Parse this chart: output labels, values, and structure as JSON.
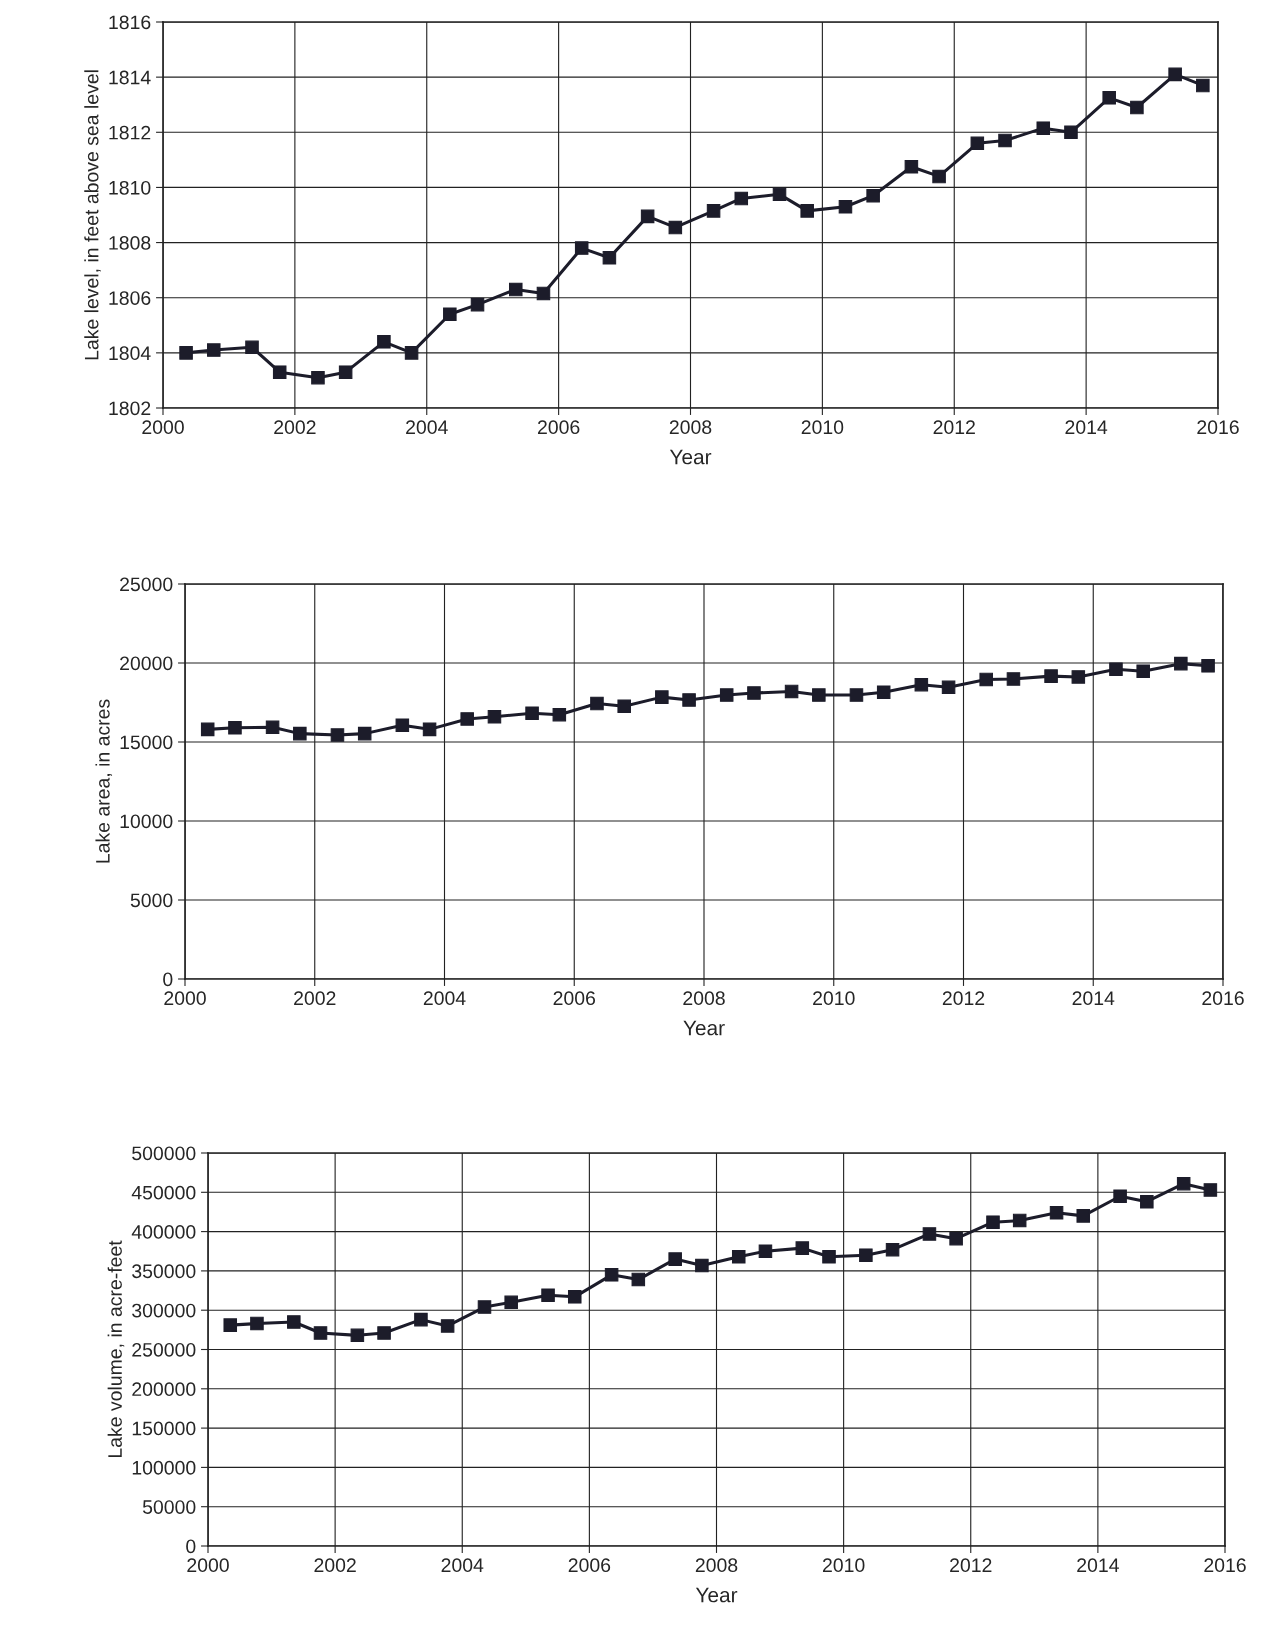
{
  "chart_data": [
    {
      "type": "line",
      "xlabel": "Year",
      "ylabel": "Lake level, in feet above sea level",
      "x": [
        2000.35,
        2000.77,
        2001.35,
        2001.77,
        2002.35,
        2002.77,
        2003.35,
        2003.77,
        2004.35,
        2004.77,
        2005.35,
        2005.77,
        2006.35,
        2006.77,
        2007.35,
        2007.77,
        2008.35,
        2008.77,
        2009.35,
        2009.77,
        2010.35,
        2010.77,
        2011.35,
        2011.77,
        2012.35,
        2012.77,
        2013.35,
        2013.77,
        2014.35,
        2014.77,
        2015.35,
        2015.77
      ],
      "series": [
        {
          "color": "#1c1c2a",
          "values": [
            1804.0,
            1804.1,
            1804.2,
            1803.3,
            1803.1,
            1803.3,
            1804.4,
            1804.0,
            1805.4,
            1805.75,
            1806.3,
            1806.15,
            1807.8,
            1807.45,
            1808.95,
            1808.55,
            1809.15,
            1809.6,
            1809.75,
            1809.15,
            1809.3,
            1809.7,
            1810.75,
            1810.4,
            1811.6,
            1811.7,
            1812.15,
            1812.0,
            1813.25,
            1812.9,
            1814.1,
            1813.7
          ]
        }
      ],
      "xlim": [
        2000,
        2016
      ],
      "xticks": [
        2000,
        2002,
        2004,
        2006,
        2008,
        2010,
        2012,
        2014,
        2016
      ],
      "ylim": [
        1802,
        1816
      ],
      "yticks": [
        1802,
        1804,
        1806,
        1808,
        1810,
        1812,
        1814,
        1816
      ],
      "grid": true,
      "marker": "square",
      "line_style": "solid"
    },
    {
      "type": "line",
      "xlabel": "Year",
      "ylabel": "Lake area, in acres",
      "x": [
        2000.35,
        2000.77,
        2001.35,
        2001.77,
        2002.35,
        2002.77,
        2003.35,
        2003.77,
        2004.35,
        2004.77,
        2005.35,
        2005.77,
        2006.35,
        2006.77,
        2007.35,
        2007.77,
        2008.35,
        2008.77,
        2009.35,
        2009.77,
        2010.35,
        2010.77,
        2011.35,
        2011.77,
        2012.35,
        2012.77,
        2013.35,
        2013.77,
        2014.35,
        2014.77,
        2015.35,
        2015.77
      ],
      "series": [
        {
          "color": "#1c1c2a",
          "values": [
            15800,
            15900,
            15930,
            15530,
            15440,
            15530,
            16060,
            15800,
            16460,
            16600,
            16820,
            16730,
            17440,
            17260,
            17840,
            17660,
            17970,
            18100,
            18190,
            17970,
            17970,
            18150,
            18630,
            18460,
            18950,
            18990,
            19170,
            19120,
            19610,
            19480,
            19960,
            19820
          ]
        }
      ],
      "xlim": [
        2000,
        2016
      ],
      "xticks": [
        2000,
        2002,
        2004,
        2006,
        2008,
        2010,
        2012,
        2014,
        2016
      ],
      "ylim": [
        0,
        25000
      ],
      "yticks": [
        0,
        5000,
        10000,
        15000,
        20000,
        25000
      ],
      "grid": true,
      "marker": "square",
      "line_style": "solid"
    },
    {
      "type": "line",
      "xlabel": "Year",
      "ylabel": "Lake volume, in acre-feet",
      "x": [
        2000.35,
        2000.77,
        2001.35,
        2001.77,
        2002.35,
        2002.77,
        2003.35,
        2003.77,
        2004.35,
        2004.77,
        2005.35,
        2005.77,
        2006.35,
        2006.77,
        2007.35,
        2007.77,
        2008.35,
        2008.77,
        2009.35,
        2009.77,
        2010.35,
        2010.77,
        2011.35,
        2011.77,
        2012.35,
        2012.77,
        2013.35,
        2013.77,
        2014.35,
        2014.77,
        2015.35,
        2015.77
      ],
      "series": [
        {
          "color": "#1c1c2a",
          "values": [
            281000,
            283000,
            285000,
            271000,
            268000,
            271000,
            288000,
            280000,
            304000,
            310000,
            319000,
            317000,
            345000,
            339000,
            365000,
            357000,
            368000,
            375000,
            379000,
            368000,
            370000,
            377000,
            397000,
            391000,
            412000,
            414000,
            424000,
            420000,
            445000,
            438000,
            461000,
            453000
          ]
        }
      ],
      "xlim": [
        2000,
        2016
      ],
      "xticks": [
        2000,
        2002,
        2004,
        2006,
        2008,
        2010,
        2012,
        2014,
        2016
      ],
      "ylim": [
        0,
        500000
      ],
      "yticks": [
        0,
        50000,
        100000,
        150000,
        200000,
        250000,
        300000,
        350000,
        400000,
        450000,
        500000
      ],
      "grid": true,
      "marker": "square",
      "line_style": "solid"
    }
  ]
}
